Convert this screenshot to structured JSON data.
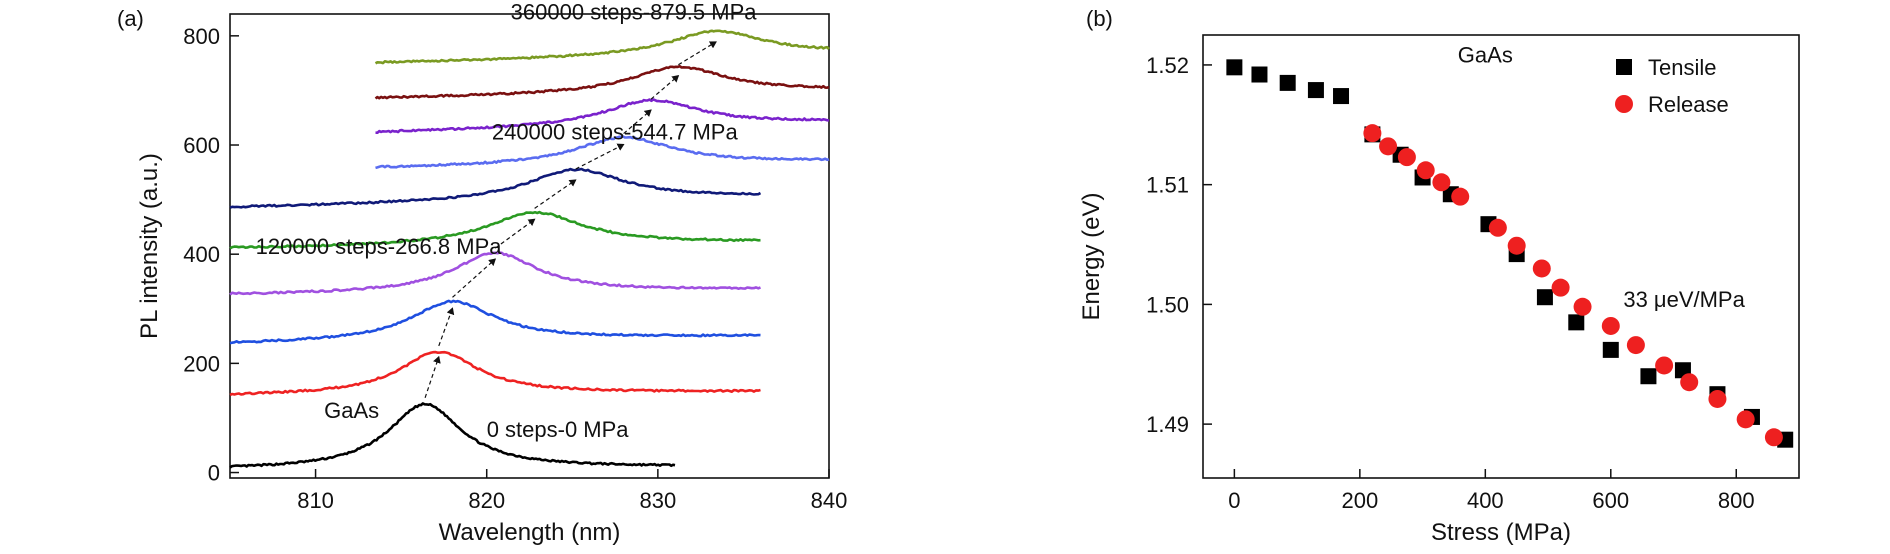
{
  "chart_data": [
    {
      "type": "line",
      "panel_label": "(a)",
      "xlabel": "Wavelength (nm)",
      "ylabel": "PL intensity (a.u.)",
      "xlim": [
        805,
        840
      ],
      "ylim": [
        -10,
        840
      ],
      "xticks": [
        810,
        820,
        830,
        840
      ],
      "yticks": [
        0,
        200,
        400,
        600,
        800
      ],
      "grid": false,
      "peak_arrows": true,
      "series": [
        {
          "color": "#000000",
          "x_start": 805.0,
          "x_end": 831.0,
          "baseline": 5,
          "amplitude": 118,
          "peak_wavelength": 816.4,
          "width": 2.6,
          "tail": 5
        },
        {
          "color": "#ee2222",
          "x_start": 805.0,
          "x_end": 836.0,
          "baseline": 140,
          "amplitude": 78,
          "peak_wavelength": 817.2,
          "width": 2.8,
          "tail": 8
        },
        {
          "color": "#1f4fe0",
          "x_start": 805.0,
          "x_end": 836.0,
          "baseline": 235,
          "amplitude": 72,
          "peak_wavelength": 818.0,
          "width": 3.0,
          "tail": 15
        },
        {
          "color": "#a050e0",
          "x_start": 805.0,
          "x_end": 836.0,
          "baseline": 325,
          "amplitude": 72,
          "peak_wavelength": 820.5,
          "width": 3.0,
          "tail": 10
        },
        {
          "color": "#2a9a22",
          "x_start": 805.0,
          "x_end": 836.0,
          "baseline": 410,
          "amplitude": 60,
          "peak_wavelength": 822.8,
          "width": 3.4,
          "tail": 12
        },
        {
          "color": "#101a78",
          "x_start": 805.0,
          "x_end": 836.0,
          "baseline": 485,
          "amplitude": 57,
          "peak_wavelength": 825.2,
          "width": 3.5,
          "tail": 20
        },
        {
          "color": "#5a6cf0",
          "x_start": 813.5,
          "x_end": 840.0,
          "baseline": 557,
          "amplitude": 50,
          "peak_wavelength": 828.0,
          "width": 3.4,
          "tail": 13
        },
        {
          "color": "#7a22cc",
          "x_start": 813.5,
          "x_end": 840.0,
          "baseline": 622,
          "amplitude": 48,
          "peak_wavelength": 829.6,
          "width": 3.4,
          "tail": 20
        },
        {
          "color": "#7a1010",
          "x_start": 813.5,
          "x_end": 840.0,
          "baseline": 685,
          "amplitude": 48,
          "peak_wavelength": 831.2,
          "width": 3.4,
          "tail": 15
        },
        {
          "color": "#7a9a22",
          "x_start": 813.5,
          "x_end": 840.0,
          "baseline": 750,
          "amplitude": 45,
          "peak_wavelength": 833.4,
          "width": 3.4,
          "tail": 18
        }
      ],
      "annotations": [
        {
          "text": "360000 steps-879.5 MPa",
          "x": 821.4,
          "y": 830
        },
        {
          "text": "240000 steps-544.7 MPa",
          "x": 820.3,
          "y": 610
        },
        {
          "text": "120000 steps-266.8 MPa",
          "x": 806.5,
          "y": 400,
          "anchor_inset": true
        },
        {
          "text": "0 steps-0 MPa",
          "x": 820.0,
          "y": 65
        },
        {
          "text": "GaAs",
          "x": 810.5,
          "y": 100
        }
      ]
    },
    {
      "type": "scatter",
      "panel_label": "(b)",
      "xlabel": "Stress (MPa)",
      "ylabel": "Energy (eV)",
      "xlim": [
        -50,
        900
      ],
      "ylim": [
        1.4855,
        1.5225
      ],
      "xticks": [
        0,
        200,
        400,
        600,
        800
      ],
      "yticks": [
        1.49,
        1.5,
        1.51,
        1.52
      ],
      "ytick_labels": [
        "1.49",
        "1.50",
        "1.51",
        "1.52"
      ],
      "grid": false,
      "legend_position": "top-right",
      "annotations": [
        {
          "text": "GaAs",
          "x": 400,
          "y": 1.5202
        },
        {
          "text": "33 μeV/MPa",
          "x": 620,
          "y": 1.4998
        }
      ],
      "series": [
        {
          "name": "Tensile",
          "marker": "square",
          "color": "#000000",
          "x": [
            0,
            40,
            85,
            130,
            170,
            220,
            265,
            300,
            345,
            405,
            450,
            495,
            545,
            600,
            660,
            715,
            770,
            825,
            878
          ],
          "y": [
            1.5198,
            1.5192,
            1.5185,
            1.5179,
            1.5174,
            1.5142,
            1.5125,
            1.5106,
            1.5092,
            1.5067,
            1.5042,
            1.5006,
            1.4985,
            1.4962,
            1.494,
            1.4945,
            1.4925,
            1.4906,
            1.4887
          ]
        },
        {
          "name": "Release",
          "marker": "circle",
          "color": "#ee2020",
          "x": [
            220,
            245,
            275,
            305,
            330,
            360,
            420,
            450,
            490,
            520,
            555,
            600,
            640,
            685,
            725,
            770,
            815,
            860
          ],
          "y": [
            1.5143,
            1.5132,
            1.5123,
            1.5112,
            1.5102,
            1.509,
            1.5064,
            1.5049,
            1.503,
            1.5014,
            1.4998,
            1.4982,
            1.4966,
            1.4949,
            1.4935,
            1.4921,
            1.4904,
            1.4889
          ]
        }
      ]
    }
  ]
}
